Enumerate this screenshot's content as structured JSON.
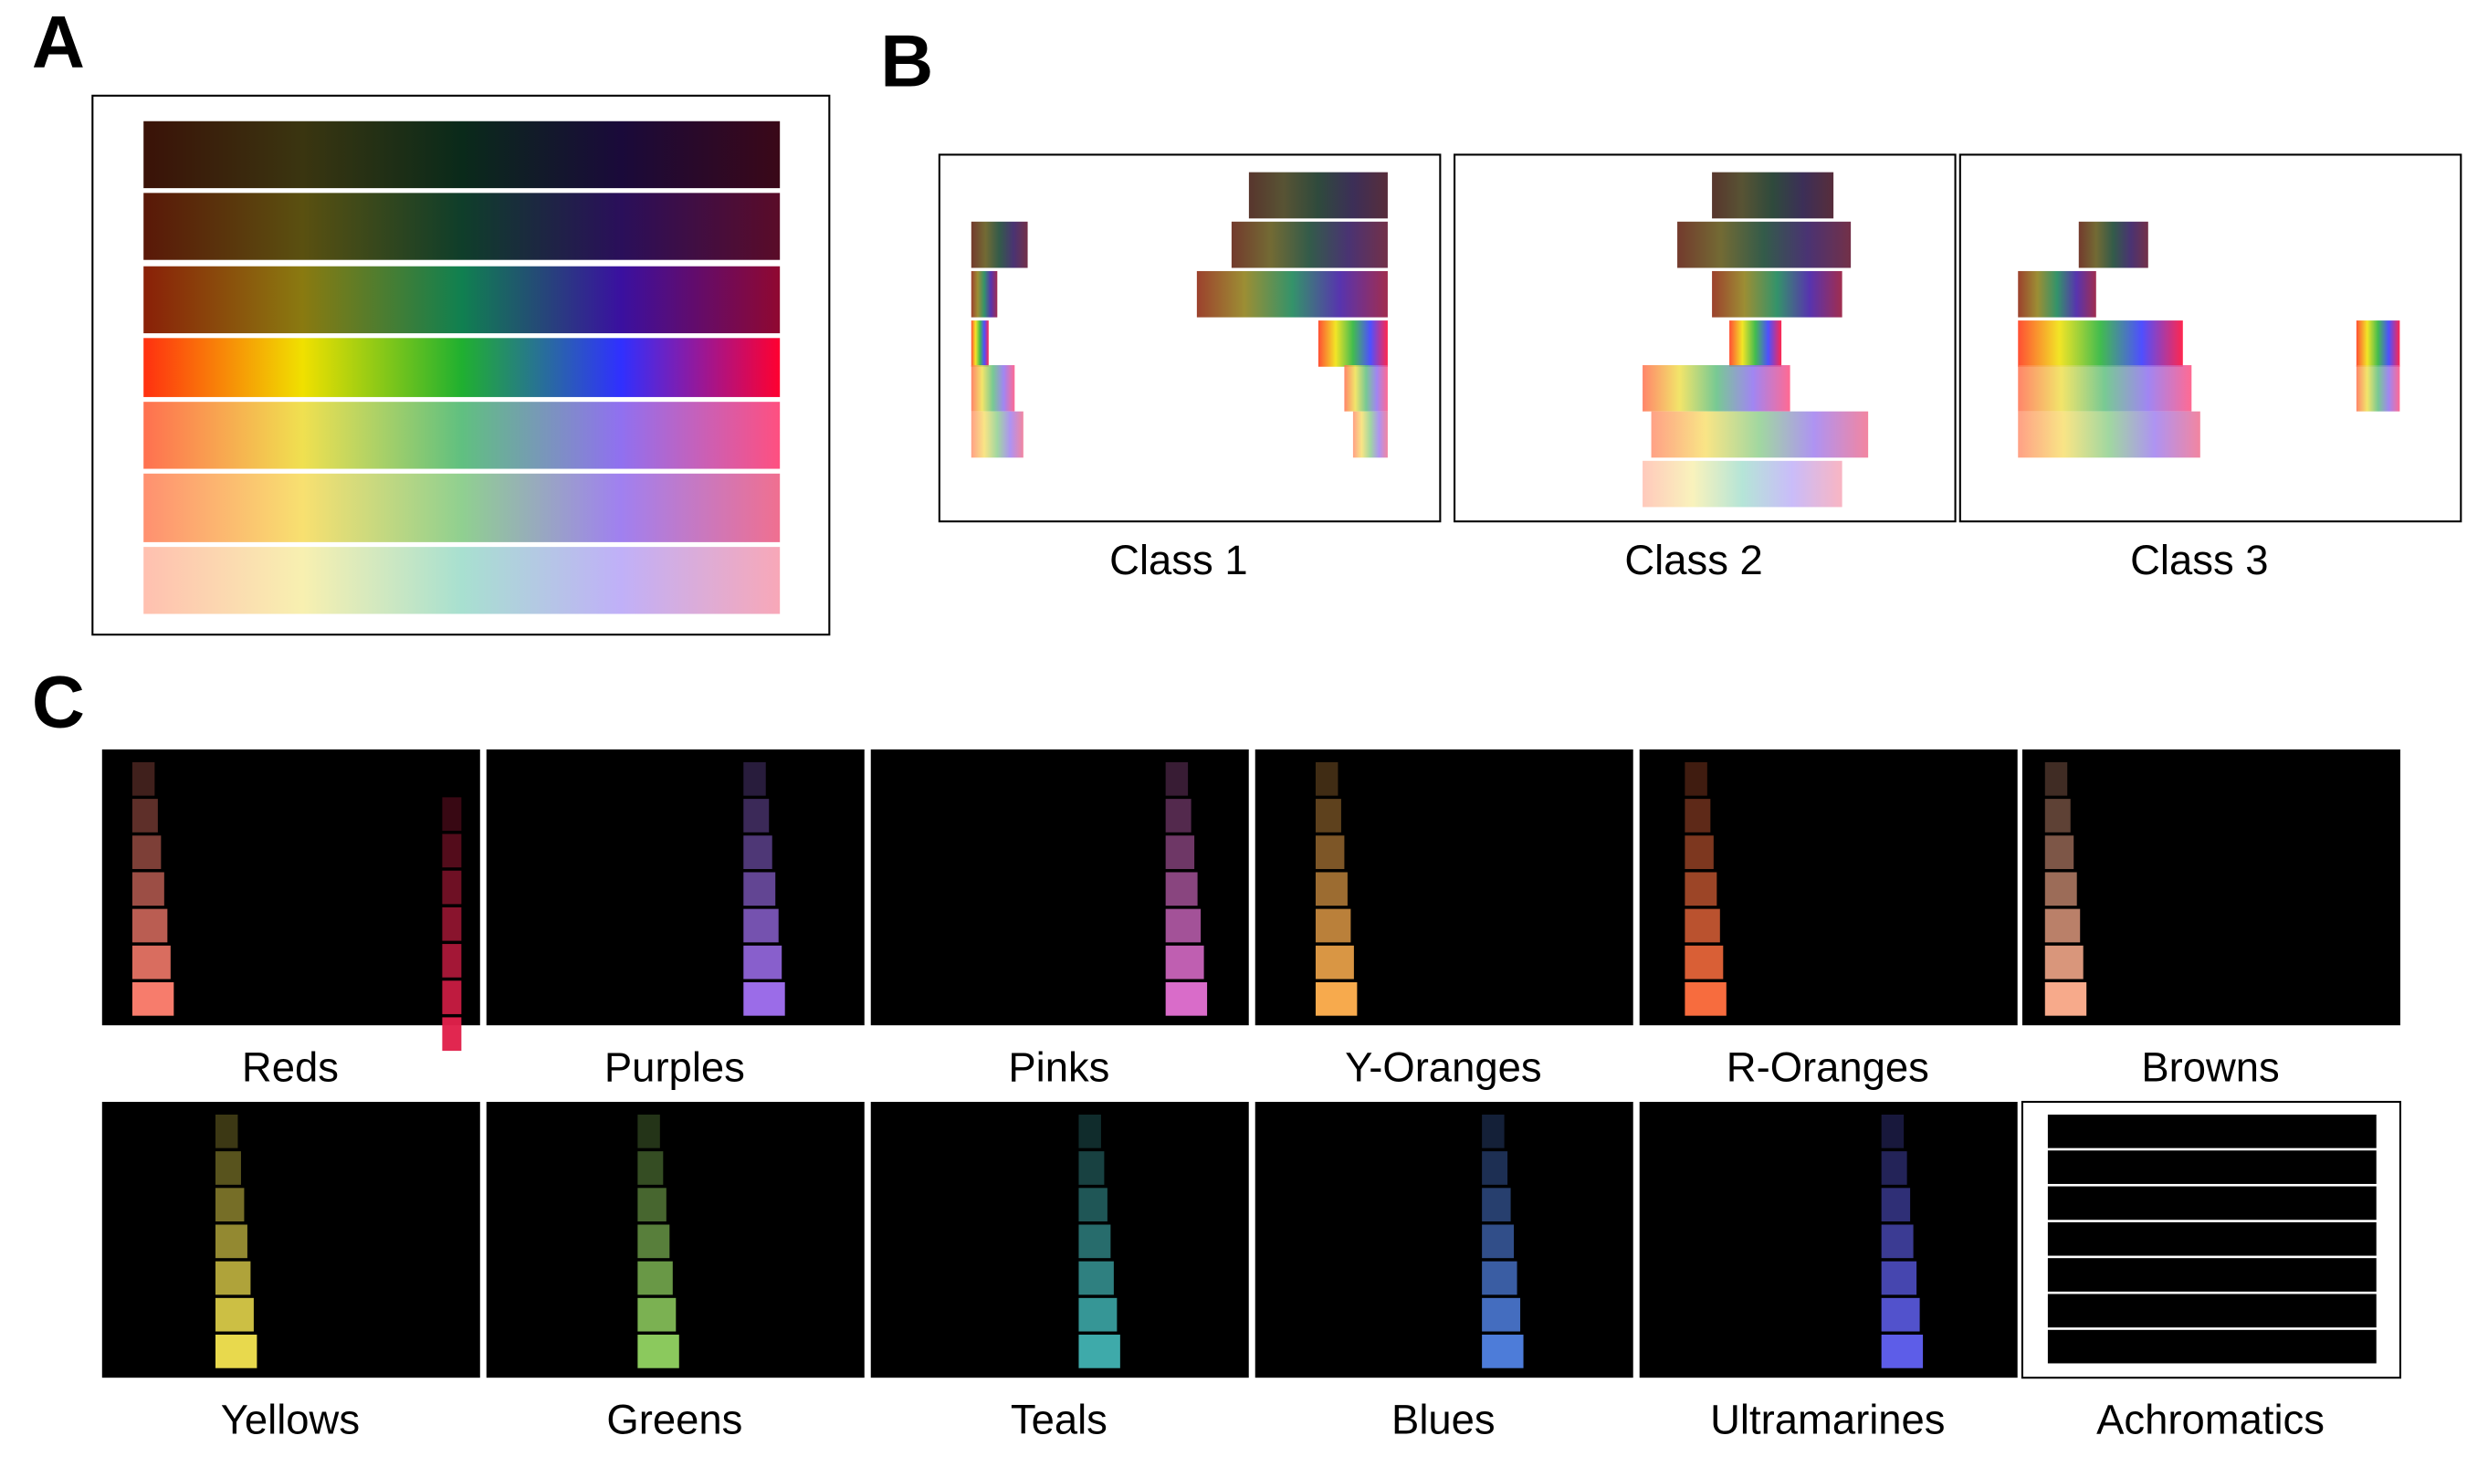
{
  "panels": {
    "a": "A",
    "b": "B",
    "c": "C"
  },
  "classes": [
    "Class 1",
    "Class 2",
    "Class 3"
  ],
  "hues": [
    "Reds",
    "Purples",
    "Pinks",
    "Y-Oranges",
    "R-Oranges",
    "Browns",
    "Yellows",
    "Greens",
    "Teals",
    "Blues",
    "Ultramarines",
    "Achromatics"
  ]
}
